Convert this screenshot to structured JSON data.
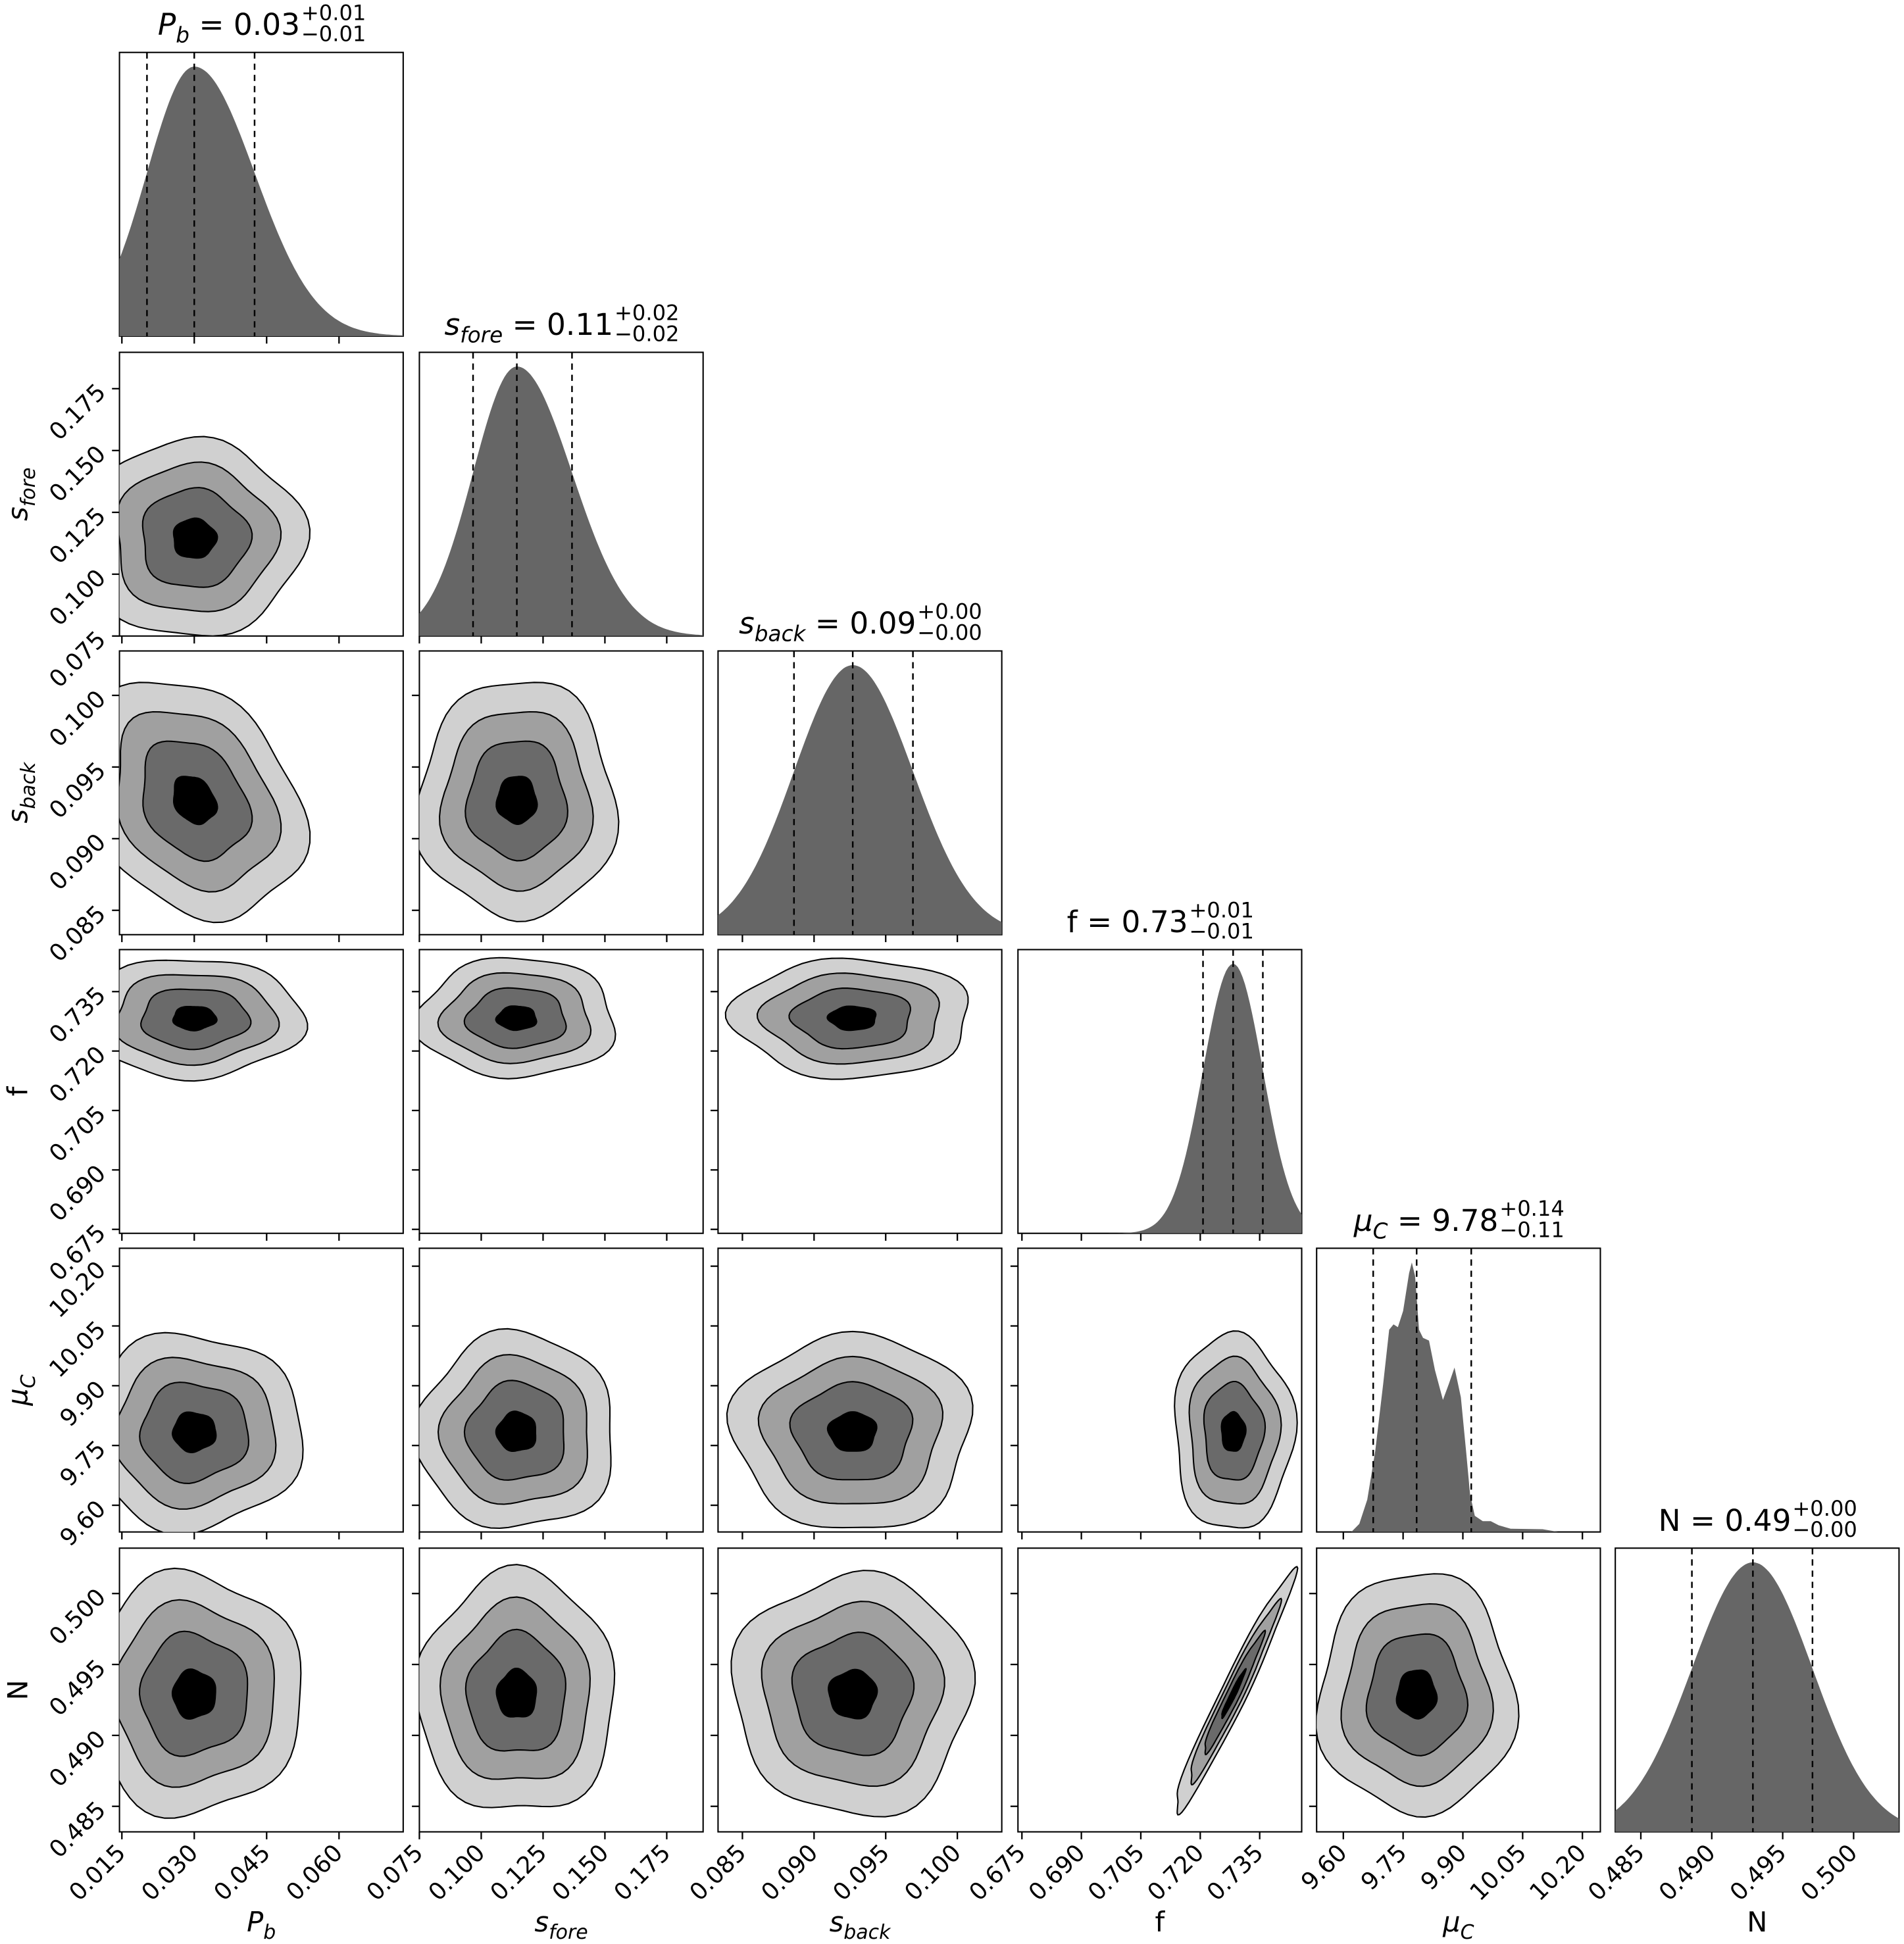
{
  "chart_data": {
    "type": "corner",
    "title": "",
    "parameters": [
      {
        "key": "Pb",
        "label_main": "P",
        "label_sub": "b",
        "italic": true,
        "title_value": "0.03",
        "title_plus": "+0.01",
        "title_minus": "−0.01",
        "quantiles": [
          0.0202,
          0.03,
          0.0425
        ],
        "range": [
          0.0145,
          0.0733
        ],
        "ticks": [
          0.015,
          0.03,
          0.045,
          0.06
        ],
        "tick_labels": [
          "0.015",
          "0.030",
          "0.045",
          "0.060"
        ]
      },
      {
        "key": "sfore",
        "label_main": "s",
        "label_sub": "fore",
        "italic": true,
        "title_value": "0.11",
        "title_plus": "+0.02",
        "title_minus": "−0.02",
        "quantiles": [
          0.0967,
          0.1144,
          0.1367
        ],
        "range": [
          0.075,
          0.1897
        ],
        "ticks": [
          0.075,
          0.1,
          0.125,
          0.15,
          0.175
        ],
        "tick_labels": [
          "0.075",
          "0.100",
          "0.125",
          "0.150",
          "0.175"
        ]
      },
      {
        "key": "sback",
        "label_main": "s",
        "label_sub": "back",
        "italic": true,
        "title_value": "0.09",
        "title_plus": "+0.00",
        "title_minus": "−0.00",
        "quantiles": [
          0.0886,
          0.0927,
          0.0969
        ],
        "range": [
          0.0833,
          0.1031
        ],
        "ticks": [
          0.085,
          0.09,
          0.095,
          0.1
        ],
        "tick_labels": [
          "0.085",
          "0.090",
          "0.095",
          "0.100"
        ]
      },
      {
        "key": "f",
        "label_main": "f",
        "label_sub": "",
        "italic": false,
        "title_value": "0.73",
        "title_plus": "+0.01",
        "title_minus": "−0.01",
        "quantiles": [
          0.7207,
          0.7283,
          0.7358
        ],
        "range": [
          0.674,
          0.7456
        ],
        "ticks": [
          0.675,
          0.69,
          0.705,
          0.72,
          0.735
        ],
        "tick_labels": [
          "0.675",
          "0.690",
          "0.705",
          "0.720",
          "0.735"
        ]
      },
      {
        "key": "muC",
        "label_main": "μ",
        "label_sub": "C",
        "italic": true,
        "title_value": "9.78",
        "title_plus": "+0.14",
        "title_minus": "−0.11",
        "quantiles": [
          9.675,
          9.784,
          9.921
        ],
        "range": [
          9.533,
          10.245
        ],
        "ticks": [
          9.6,
          9.75,
          9.9,
          10.05,
          10.2
        ],
        "tick_labels": [
          "9.60",
          "9.75",
          "9.90",
          "10.05",
          "10.20"
        ],
        "density": [
          [
            9.62,
            0
          ],
          [
            9.64,
            0.03
          ],
          [
            9.66,
            0.12
          ],
          [
            9.68,
            0.3
          ],
          [
            9.7,
            0.55
          ],
          [
            9.715,
            0.75
          ],
          [
            9.726,
            0.77
          ],
          [
            9.737,
            0.76
          ],
          [
            9.75,
            0.82
          ],
          [
            9.765,
            0.96
          ],
          [
            9.772,
            1.0
          ],
          [
            9.78,
            0.95
          ],
          [
            9.79,
            0.75
          ],
          [
            9.8,
            0.72
          ],
          [
            9.815,
            0.71
          ],
          [
            9.83,
            0.6
          ],
          [
            9.85,
            0.49
          ],
          [
            9.865,
            0.55
          ],
          [
            9.879,
            0.61
          ],
          [
            9.895,
            0.5
          ],
          [
            9.908,
            0.3
          ],
          [
            9.918,
            0.14
          ],
          [
            9.93,
            0.06
          ],
          [
            9.95,
            0.04
          ],
          [
            9.97,
            0.04
          ],
          [
            9.99,
            0.025
          ],
          [
            10.02,
            0.012
          ],
          [
            10.1,
            0.01
          ],
          [
            10.14,
            0
          ]
        ]
      },
      {
        "key": "N",
        "label_main": "N",
        "label_sub": "",
        "italic": false,
        "title_value": "0.49",
        "title_plus": "+0.00",
        "title_minus": "−0.00",
        "quantiles": [
          0.4886,
          0.4929,
          0.4971
        ],
        "range": [
          0.4832,
          0.5032
        ],
        "ticks": [
          0.485,
          0.49,
          0.495,
          0.5
        ],
        "tick_labels": [
          "0.485",
          "0.490",
          "0.495",
          "0.500"
        ]
      }
    ],
    "correlations": {
      "Pb|sback": -0.25,
      "Pb|N": 0.0,
      "f|N": 0.97,
      "sback|f": 0.0,
      "muC|N": 0.0,
      "sfore|sback": 0.0
    },
    "contour_levels_sigma": [
      2.0,
      1.5,
      1.0,
      0.4
    ],
    "contour_fill_colors": [
      "#d0d0d0",
      "#a0a0a0",
      "#6a6a6a",
      "#000000"
    ],
    "histogram_color": "#666666"
  }
}
